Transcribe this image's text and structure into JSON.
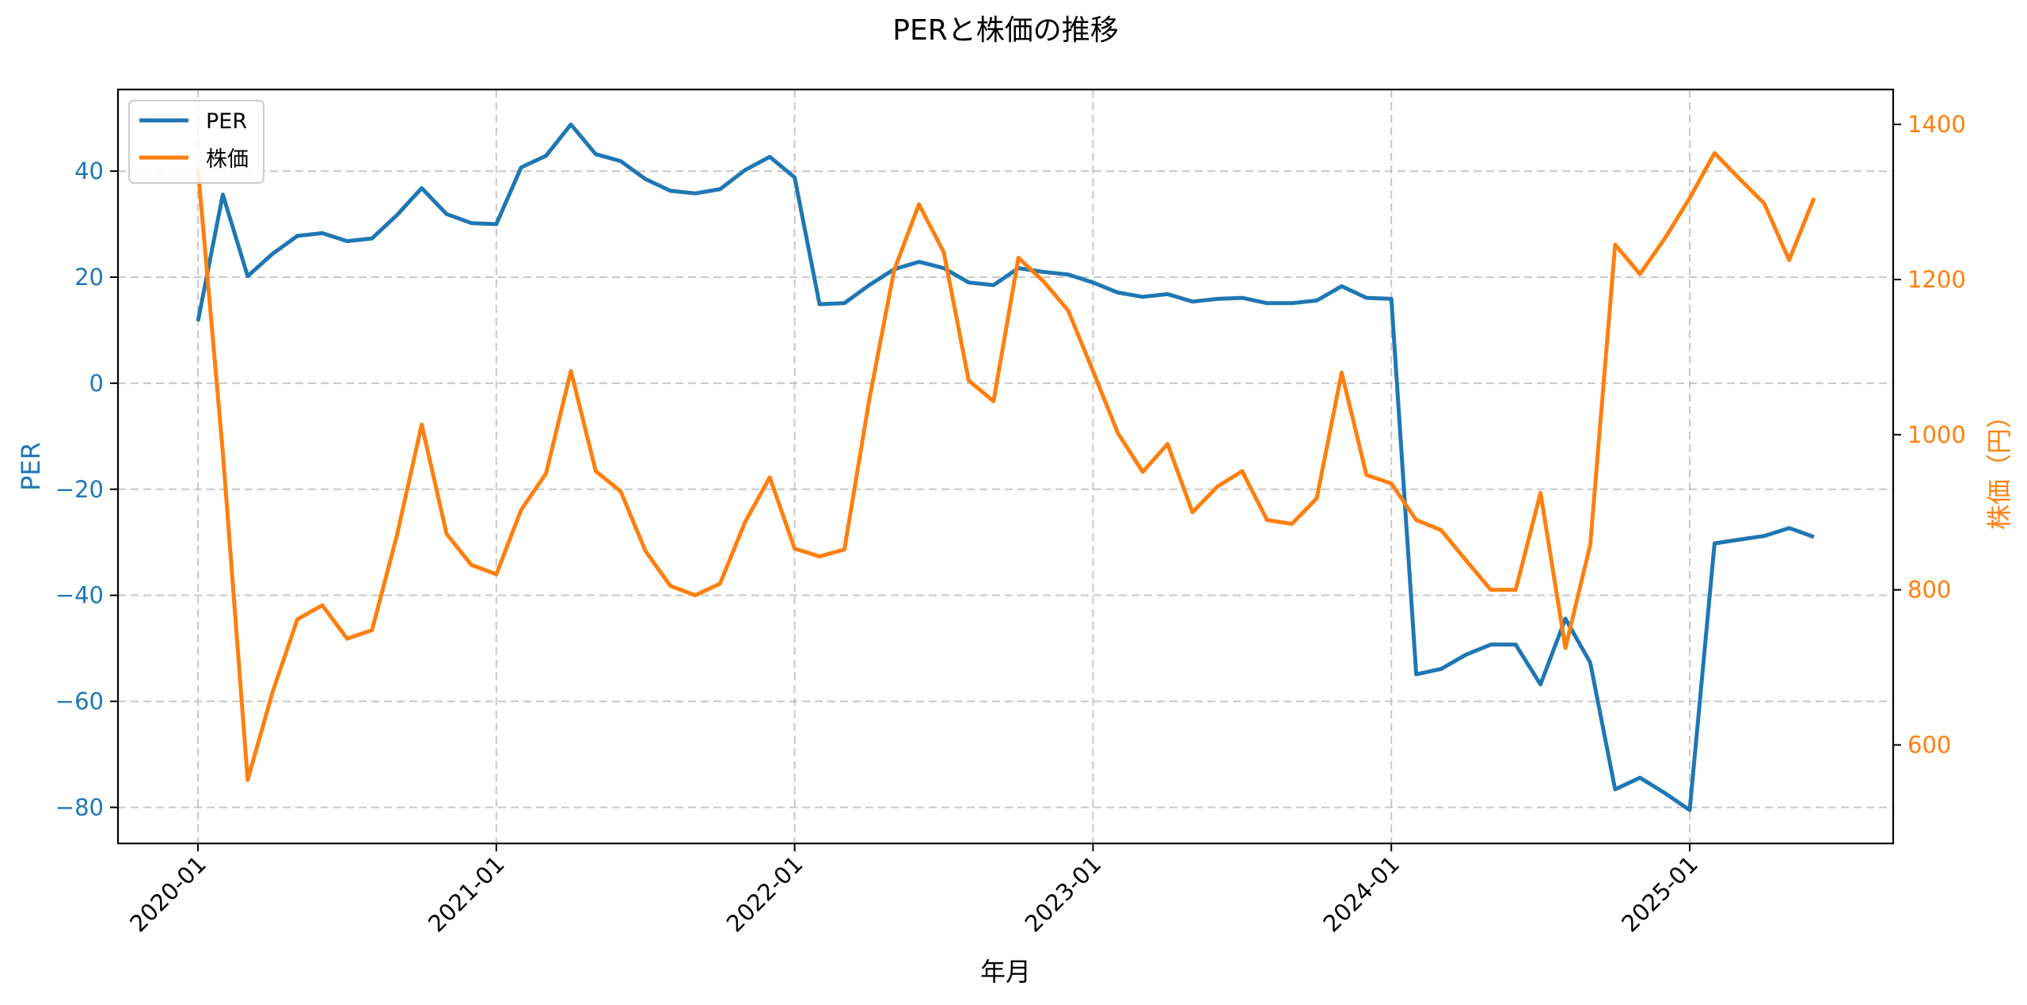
{
  "chart_data": {
    "type": "line",
    "title": "PERと株価の推移",
    "xlabel": "年月",
    "ylabel": "PER",
    "ylabel_right": "株価（円）",
    "ylim": [
      -86.8,
      55.4
    ],
    "ylim_right": [
      473,
      1445
    ],
    "yticks": [
      -80,
      -60,
      -40,
      -20,
      0,
      20,
      40
    ],
    "yticks_right": [
      600,
      800,
      1000,
      1200,
      1400
    ],
    "xticks": [
      "2020-01",
      "2021-01",
      "2022-01",
      "2023-01",
      "2024-01",
      "2025-01"
    ],
    "grid": true,
    "legend_position": "upper left",
    "x": [
      "2020-01",
      "2020-02",
      "2020-03",
      "2020-04",
      "2020-05",
      "2020-06",
      "2020-07",
      "2020-08",
      "2020-09",
      "2020-10",
      "2020-11",
      "2020-12",
      "2021-01",
      "2021-02",
      "2021-03",
      "2021-04",
      "2021-05",
      "2021-06",
      "2021-07",
      "2021-08",
      "2021-09",
      "2021-10",
      "2021-11",
      "2021-12",
      "2022-01",
      "2022-02",
      "2022-03",
      "2022-04",
      "2022-05",
      "2022-06",
      "2022-07",
      "2022-08",
      "2022-09",
      "2022-10",
      "2022-11",
      "2022-12",
      "2023-01",
      "2023-02",
      "2023-03",
      "2023-04",
      "2023-05",
      "2023-06",
      "2023-07",
      "2023-08",
      "2023-09",
      "2023-10",
      "2023-11",
      "2023-12",
      "2024-01",
      "2024-02",
      "2024-03",
      "2024-04",
      "2024-05",
      "2024-06",
      "2024-07",
      "2024-08",
      "2024-09",
      "2024-10",
      "2024-11",
      "2024-12",
      "2025-01",
      "2025-02",
      "2025-03",
      "2025-04",
      "2025-05",
      "2025-06"
    ],
    "series": [
      {
        "name": "PER",
        "axis": "left",
        "color": "#1f77b4",
        "values": [
          11.7,
          35.6,
          20.2,
          24.4,
          27.8,
          28.3,
          26.8,
          27.3,
          31.7,
          36.8,
          31.9,
          30.2,
          30.0,
          40.7,
          42.9,
          48.8,
          43.2,
          41.9,
          38.5,
          36.3,
          35.8,
          36.6,
          40.2,
          42.7,
          38.8,
          14.9,
          15.1,
          18.5,
          21.5,
          22.9,
          21.7,
          19.0,
          18.5,
          21.7,
          21.0,
          20.5,
          19.0,
          17.1,
          16.3,
          16.8,
          15.4,
          15.9,
          16.1,
          15.1,
          15.1,
          15.6,
          18.3,
          16.1,
          15.9,
          -54.9,
          -53.9,
          -51.2,
          -49.3,
          -49.3,
          -56.8,
          -44.4,
          -52.7,
          -76.6,
          -74.4,
          -77.3,
          -80.5,
          -30.2,
          -29.5,
          -28.8,
          -27.3,
          -29.0
        ]
      },
      {
        "name": "株価",
        "axis": "right",
        "color": "#ff7f0e",
        "values": [
          1343,
          977,
          555,
          668,
          762,
          780,
          737,
          748,
          870,
          1013,
          872,
          832,
          820,
          903,
          950,
          1082,
          953,
          927,
          850,
          805,
          793,
          808,
          887,
          945,
          853,
          843,
          852,
          1045,
          1212,
          1297,
          1235,
          1070,
          1043,
          1228,
          1198,
          1160,
          1082,
          1002,
          952,
          988,
          900,
          933,
          953,
          890,
          885,
          918,
          1080,
          948,
          937,
          890,
          877,
          838,
          800,
          800,
          925,
          725,
          858,
          1245,
          1207,
          1253,
          1305,
          1363,
          1330,
          1298,
          1225,
          1305
        ]
      }
    ]
  },
  "legend": {
    "items": [
      {
        "label": "PER",
        "color": "#1f77b4"
      },
      {
        "label": "株価",
        "color": "#ff7f0e"
      }
    ]
  }
}
